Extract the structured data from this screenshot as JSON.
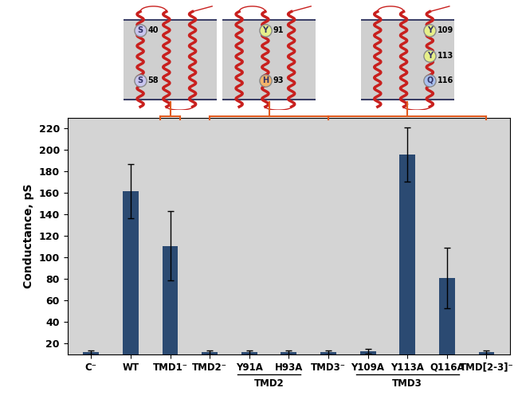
{
  "chart_data": {
    "type": "bar",
    "categories": [
      "C⁻",
      "WT",
      "TMD1⁻",
      "TMD2⁻",
      "Y91A",
      "H93A",
      "TMD3⁻",
      "Y109A",
      "Y113A",
      "Q116A",
      "TMD[2-3]⁻"
    ],
    "values": [
      12,
      162,
      111,
      12,
      12,
      12,
      12,
      13,
      196,
      81,
      12
    ],
    "errors": [
      2,
      25,
      32,
      2,
      2,
      2,
      2,
      2,
      25,
      28,
      2
    ],
    "color": "#2b4a72",
    "ylabel": "Conductance, pS",
    "ylim": [
      10,
      230
    ],
    "yticks": [
      20,
      40,
      60,
      80,
      100,
      120,
      140,
      160,
      180,
      200,
      220
    ],
    "groups": [
      {
        "label": "TMD2",
        "categories": [
          "Y91A",
          "H93A"
        ]
      },
      {
        "label": "TMD3",
        "categories": [
          "Y109A",
          "Y113A",
          "Q116A"
        ]
      }
    ]
  },
  "diagrams": [
    {
      "categories": [
        "TMD1⁻"
      ],
      "residues": [
        {
          "letter": "S",
          "number": 40,
          "color": "#c9c5ee"
        },
        {
          "letter": "S",
          "number": 58,
          "color": "#c9c5ee"
        }
      ]
    },
    {
      "categories": [
        "TMD2⁻",
        "Y91A",
        "H93A",
        "TMD3⁻"
      ],
      "residues": [
        {
          "letter": "Y",
          "number": 91,
          "color": "#e6ef8a"
        },
        {
          "letter": "H",
          "number": 93,
          "color": "#f3b46a"
        }
      ]
    },
    {
      "categories": [
        "TMD3⁻",
        "Y109A",
        "Y113A",
        "Q116A",
        "TMD[2-3]⁻"
      ],
      "residues": [
        {
          "letter": "Y",
          "number": 109,
          "color": "#e6ef8a"
        },
        {
          "letter": "Y",
          "number": 113,
          "color": "#e6ef8a"
        },
        {
          "letter": "Q",
          "number": 116,
          "color": "#a9c0ef"
        }
      ]
    }
  ]
}
